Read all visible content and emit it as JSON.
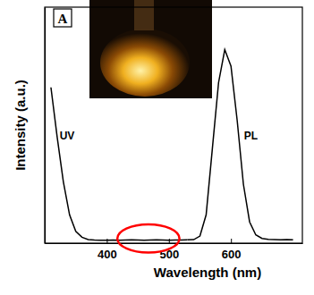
{
  "chart_data": {
    "type": "line",
    "panel_label": "A",
    "x_label": "Wavelength (nm)",
    "y_label": "Intensity (a.u.)",
    "x": [
      310,
      320,
      330,
      340,
      350,
      360,
      370,
      380,
      390,
      400,
      410,
      420,
      430,
      440,
      450,
      460,
      470,
      480,
      490,
      500,
      510,
      520,
      530,
      540,
      550,
      560,
      570,
      580,
      590,
      600,
      610,
      620,
      630,
      640,
      650,
      660,
      670,
      680,
      690,
      700
    ],
    "series": [
      {
        "name": "UV",
        "color": "#000000",
        "values": [
          66,
          45,
          26,
          12,
          5,
          2.5,
          1.5,
          1.3,
          1.2,
          1.2,
          1.3,
          1.2,
          1.3,
          1.4,
          1.3,
          1.2,
          1.3,
          1.4,
          1.3,
          1.2,
          1.3,
          1.3,
          1.4,
          null,
          null,
          null,
          null,
          null,
          null,
          null,
          null,
          null,
          null,
          null,
          null,
          null,
          null,
          null,
          null,
          null
        ]
      },
      {
        "name": "PL",
        "color": "#000000",
        "values": [
          null,
          null,
          null,
          null,
          null,
          null,
          null,
          null,
          null,
          null,
          null,
          null,
          null,
          null,
          null,
          null,
          null,
          null,
          null,
          null,
          null,
          null,
          1.4,
          1.5,
          3,
          12,
          40,
          68,
          82,
          75,
          52,
          25,
          9,
          3.5,
          2,
          1.6,
          1.5,
          1.4,
          1.5,
          1.4
        ]
      }
    ],
    "annotations": [
      {
        "text": "UV",
        "x": 336,
        "y": 44
      },
      {
        "text": "PL",
        "x": 632,
        "y": 44
      }
    ],
    "highlight": {
      "x": [
        417,
        517
      ],
      "y": [
        -4,
        8
      ],
      "color": "#ff0000"
    },
    "xlim": [
      300,
      715
    ],
    "ylim": [
      0,
      100
    ],
    "xticks": [
      400,
      500,
      600
    ],
    "yticks": [],
    "tick_labels": "x",
    "grid": false
  }
}
